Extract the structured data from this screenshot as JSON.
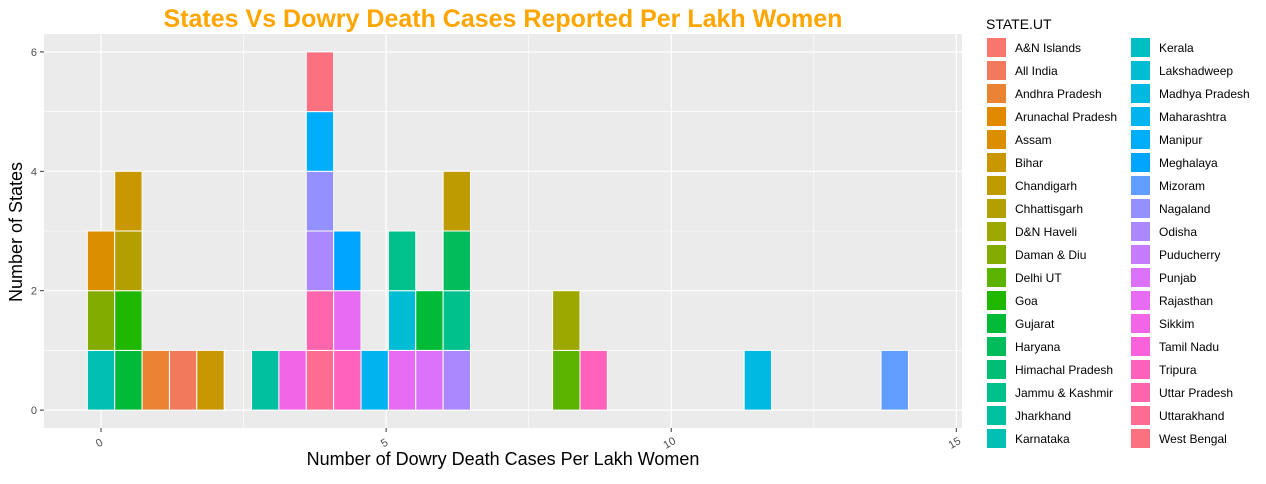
{
  "chart_data": {
    "type": "bar",
    "subtype": "stacked-histogram",
    "title": "States Vs Dowry Death Cases Reported Per Lakh Women",
    "title_color": "#FFA500",
    "xlabel": "Number of Dowry Death Cases Per Lakh Women",
    "ylabel": "Number of States",
    "xlim": [
      -1,
      15.1
    ],
    "ylim": [
      -0.3,
      6.3
    ],
    "x_ticks": [
      0,
      5,
      10,
      15
    ],
    "y_ticks": [
      0,
      2,
      4,
      6
    ],
    "bin_width": 0.48,
    "grid": true,
    "legend_position": "right",
    "legend_title": "STATE.UT",
    "panel_background": "#EBEBEB",
    "bins": [
      {
        "x": 0.0,
        "states": [
          "Karnataka",
          "Daman & Diu",
          "Assam"
        ]
      },
      {
        "x": 0.48,
        "states": [
          "Gujarat",
          "Goa",
          "Chhattisgarh",
          "Bihar"
        ]
      },
      {
        "x": 0.96,
        "states": [
          "Andhra Pradesh"
        ]
      },
      {
        "x": 1.44,
        "states": [
          "All India"
        ]
      },
      {
        "x": 1.92,
        "states": [
          "Bihar"
        ]
      },
      {
        "x": 2.88,
        "states": [
          "Jharkhand"
        ]
      },
      {
        "x": 3.36,
        "states": [
          "Sikkim"
        ]
      },
      {
        "x": 3.84,
        "states": [
          "Uttarakhand",
          "Uttar Pradesh",
          "Odisha",
          "Nagaland",
          "Manipur",
          "West Bengal"
        ]
      },
      {
        "x": 4.32,
        "states": [
          "Tripura",
          "Rajasthan",
          "Meghalaya"
        ]
      },
      {
        "x": 4.8,
        "states": [
          "Maharashtra"
        ]
      },
      {
        "x": 5.28,
        "states": [
          "Rajasthan",
          "Lakshadweep",
          "Jammu & Kashmir"
        ]
      },
      {
        "x": 5.76,
        "states": [
          "Punjab",
          "Gujarat"
        ]
      },
      {
        "x": 6.24,
        "states": [
          "Odisha",
          "Jammu & Kashmir",
          "Haryana",
          "Chandigarh"
        ]
      },
      {
        "x": 8.16,
        "states": [
          "Delhi UT",
          "D&N Haveli"
        ]
      },
      {
        "x": 8.64,
        "states": [
          "Tripura"
        ]
      },
      {
        "x": 11.52,
        "states": [
          "Madhya Pradesh"
        ]
      },
      {
        "x": 13.92,
        "states": [
          "Mizoram"
        ]
      }
    ],
    "legend": [
      {
        "name": "A&N Islands",
        "color": "#F8766D"
      },
      {
        "name": "All India",
        "color": "#F2795C"
      },
      {
        "name": "Andhra Pradesh",
        "color": "#EB8335"
      },
      {
        "name": "Arunachal Pradesh",
        "color": "#E18A00"
      },
      {
        "name": "Assam",
        "color": "#DB8E00"
      },
      {
        "name": "Bihar",
        "color": "#C99800"
      },
      {
        "name": "Chandigarh",
        "color": "#BE9C00"
      },
      {
        "name": "Chhattisgarh",
        "color": "#B3A000"
      },
      {
        "name": "D&N Haveli",
        "color": "#9CA700"
      },
      {
        "name": "Daman & Diu",
        "color": "#82AD00"
      },
      {
        "name": "Delhi UT",
        "color": "#5BB300"
      },
      {
        "name": "Goa",
        "color": "#20B700"
      },
      {
        "name": "Gujarat",
        "color": "#00BA38"
      },
      {
        "name": "Haryana",
        "color": "#00BC5A"
      },
      {
        "name": "Himachal Pradesh",
        "color": "#00BE73"
      },
      {
        "name": "Jammu & Kashmir",
        "color": "#00C08B"
      },
      {
        "name": "Jharkhand",
        "color": "#00C0A0"
      },
      {
        "name": "Karnataka",
        "color": "#00C0B3"
      },
      {
        "name": "Kerala",
        "color": "#00BFC4"
      },
      {
        "name": "Lakshadweep",
        "color": "#00BDD4"
      },
      {
        "name": "Madhya Pradesh",
        "color": "#00B9E3"
      },
      {
        "name": "Maharashtra",
        "color": "#00B4EF"
      },
      {
        "name": "Manipur",
        "color": "#00ADFA"
      },
      {
        "name": "Meghalaya",
        "color": "#00A5FF"
      },
      {
        "name": "Mizoram",
        "color": "#619CFF"
      },
      {
        "name": "Nagaland",
        "color": "#9590FF"
      },
      {
        "name": "Odisha",
        "color": "#AC88FF"
      },
      {
        "name": "Puducherry",
        "color": "#C77CFF"
      },
      {
        "name": "Punjab",
        "color": "#DC71FA"
      },
      {
        "name": "Rajasthan",
        "color": "#E76BF3"
      },
      {
        "name": "Sikkim",
        "color": "#F265E7"
      },
      {
        "name": "Tamil Nadu",
        "color": "#FA62DB"
      },
      {
        "name": "Tripura",
        "color": "#FF62BC"
      },
      {
        "name": "Uttar Pradesh",
        "color": "#FF65AC"
      },
      {
        "name": "Uttarakhand",
        "color": "#FF6C91"
      },
      {
        "name": "West Bengal",
        "color": "#FC717F"
      }
    ]
  }
}
